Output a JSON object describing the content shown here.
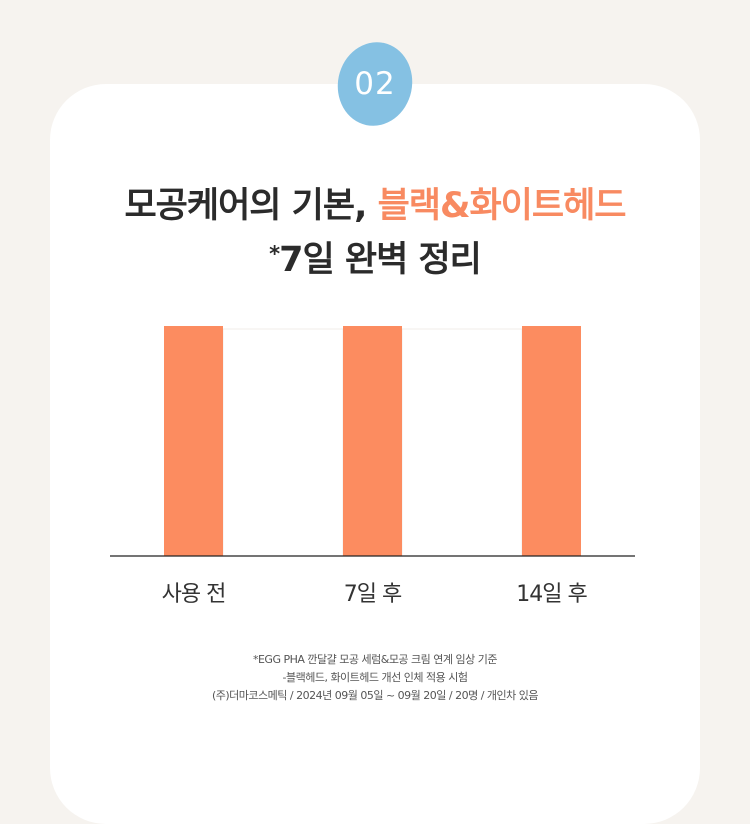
{
  "badge": {
    "label": "02",
    "color": "#85c1e3"
  },
  "headline": {
    "line1_prefix": "모공케어의 기본, ",
    "line1_accent": "블랙&화이트헤드",
    "line2_mark": "*",
    "line2_rest": "7일 완벽 정리"
  },
  "chart_data": {
    "type": "bar",
    "categories": [
      "사용 전",
      "7일 후",
      "14일 후"
    ],
    "series": [
      {
        "color": "#fc8c60",
        "values": [
          100,
          100,
          100
        ]
      }
    ],
    "gap_panel_color": "#ffffff",
    "ylim": [
      0,
      100
    ],
    "grid": false,
    "legend": "none"
  },
  "notes": [
    "*EGG PHA 깐달걀 모공 세럼&모공 크림 연계 임상 기준",
    "-블랙헤드, 화이트헤드 개선 인체 적용 시험",
    "(주)더마코스메틱  / 2024년 09월 05일 ~ 09월 20일 / 20명 / 개인차 있음"
  ],
  "colors": {
    "page_background": "#f6f3ef",
    "card": "#ffffff",
    "accent": "#f88a61",
    "text": "#2b2b2b",
    "axis": "#222222"
  }
}
